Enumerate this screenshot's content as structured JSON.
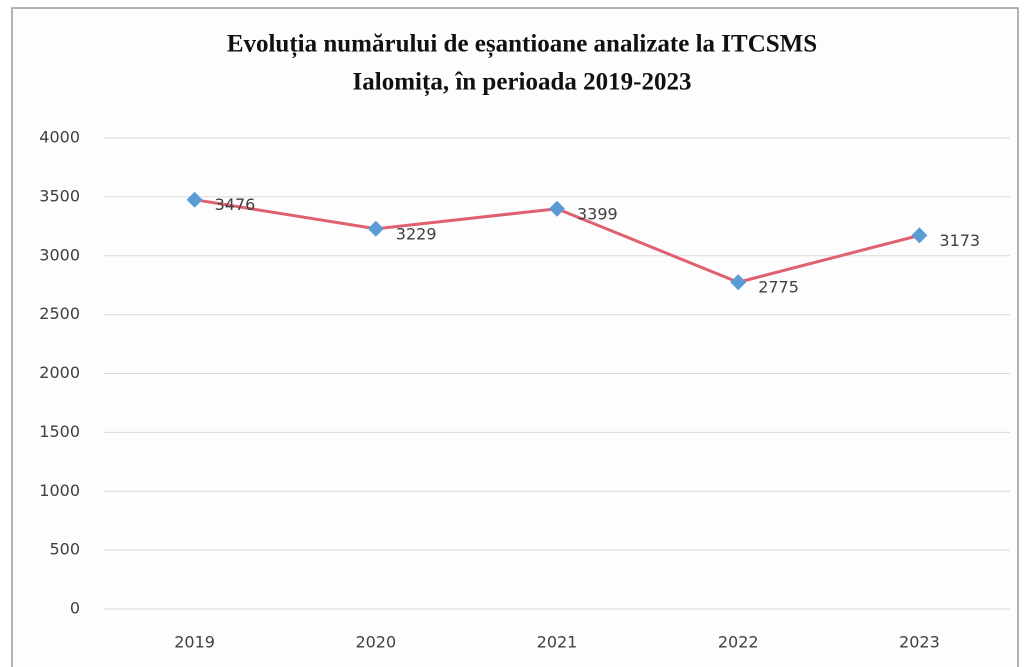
{
  "chart_data": {
    "type": "line",
    "title": [
      "Evoluția numărului de eșantioane analizate la ITCSMS",
      "Ialomița, în perioada 2019-2023"
    ],
    "categories": [
      "2019",
      "2020",
      "2021",
      "2022",
      "2023"
    ],
    "values": [
      3476,
      3229,
      3399,
      2775,
      3173
    ],
    "color": "#e0606f",
    "marker_color": "#5b9bd5",
    "ylim": [
      0,
      4000
    ],
    "yticks": [
      0,
      500,
      1000,
      1500,
      2000,
      2500,
      3000,
      3500,
      4000
    ],
    "grid": true
  }
}
